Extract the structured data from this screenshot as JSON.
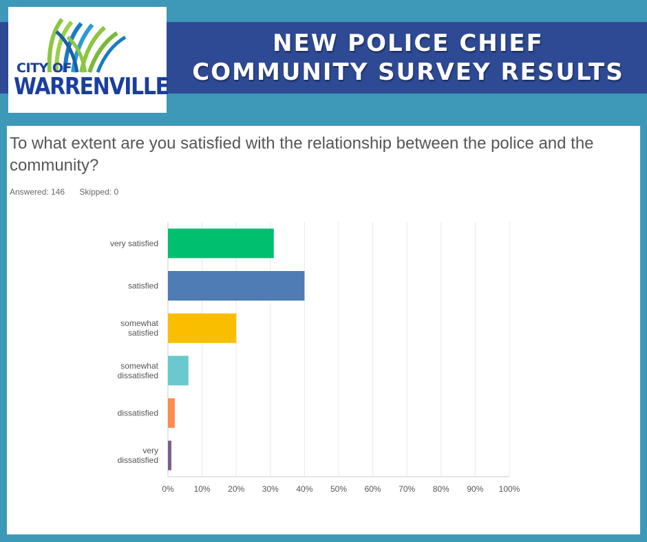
{
  "header": {
    "title_line1": "NEW POLICE CHIEF",
    "title_line2": "COMMUNITY SURVEY RESULTS"
  },
  "logo": {
    "line1": "CITY OF",
    "line2": "WARRENVILLE"
  },
  "survey": {
    "question": "To what extent are you satisfied with the relationship between the police and the community?",
    "answered": "Answered: 146",
    "skipped": "Skipped: 0"
  },
  "colors": {
    "background": "#3e98b8",
    "banner": "#2e4a94",
    "logo_blue": "#1a3ea0",
    "logo_green": "#8cc63f"
  },
  "chart_data": {
    "type": "bar",
    "orientation": "horizontal",
    "categories": [
      [
        "very satisfied"
      ],
      [
        "satisfied"
      ],
      [
        "somewhat",
        "satisfied"
      ],
      [
        "somewhat",
        "dissatisfied"
      ],
      [
        "dissatisfied"
      ],
      [
        "very",
        "dissatisfied"
      ]
    ],
    "values": [
      31,
      40,
      20,
      6,
      2,
      1
    ],
    "colors": [
      "#00bf6f",
      "#507cb6",
      "#f9be00",
      "#6bc8cd",
      "#ff8b4f",
      "#7d5e90"
    ],
    "xlim": [
      0,
      100
    ],
    "ticks": [
      "0%",
      "10%",
      "20%",
      "30%",
      "40%",
      "50%",
      "60%",
      "70%",
      "80%",
      "90%",
      "100%"
    ],
    "grid": true
  }
}
